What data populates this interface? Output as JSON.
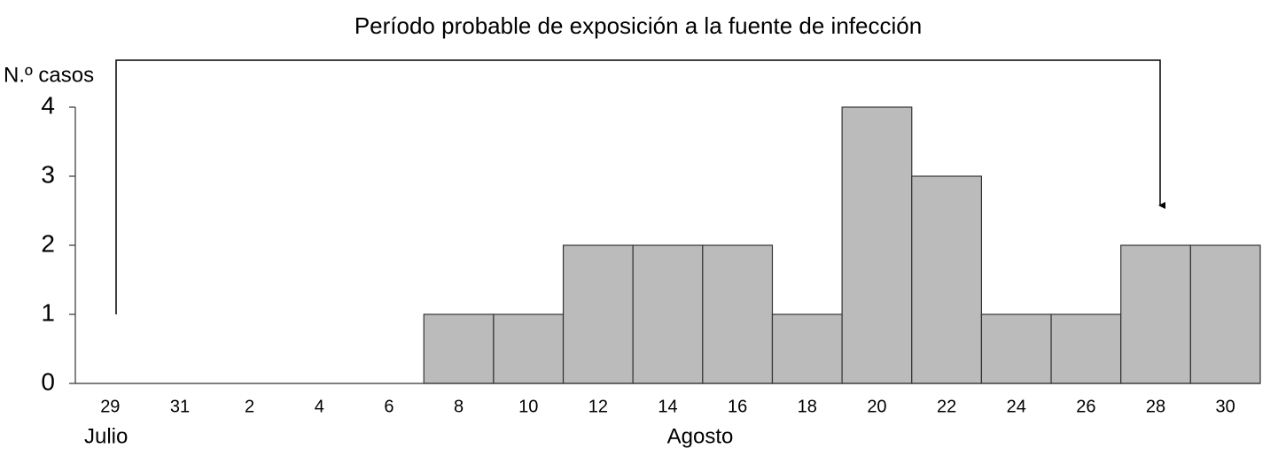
{
  "chart_data": {
    "type": "bar",
    "title": "Período probable de exposición a la fuente de infección",
    "y_label": "N.º casos",
    "annotations": [
      "Julio",
      "Agosto"
    ],
    "categories": [
      "29",
      "31",
      "2",
      "4",
      "6",
      "8",
      "10",
      "12",
      "14",
      "16",
      "18",
      "20",
      "22",
      "24",
      "26",
      "28",
      "30"
    ],
    "values": [
      0,
      0,
      0,
      0,
      0,
      1,
      1,
      2,
      2,
      2,
      1,
      4,
      3,
      1,
      1,
      2,
      2
    ],
    "color": "#bbbbbb",
    "ylim": [
      0,
      4
    ],
    "yticks": [
      0,
      1,
      2,
      3,
      4
    ],
    "grid": false
  }
}
